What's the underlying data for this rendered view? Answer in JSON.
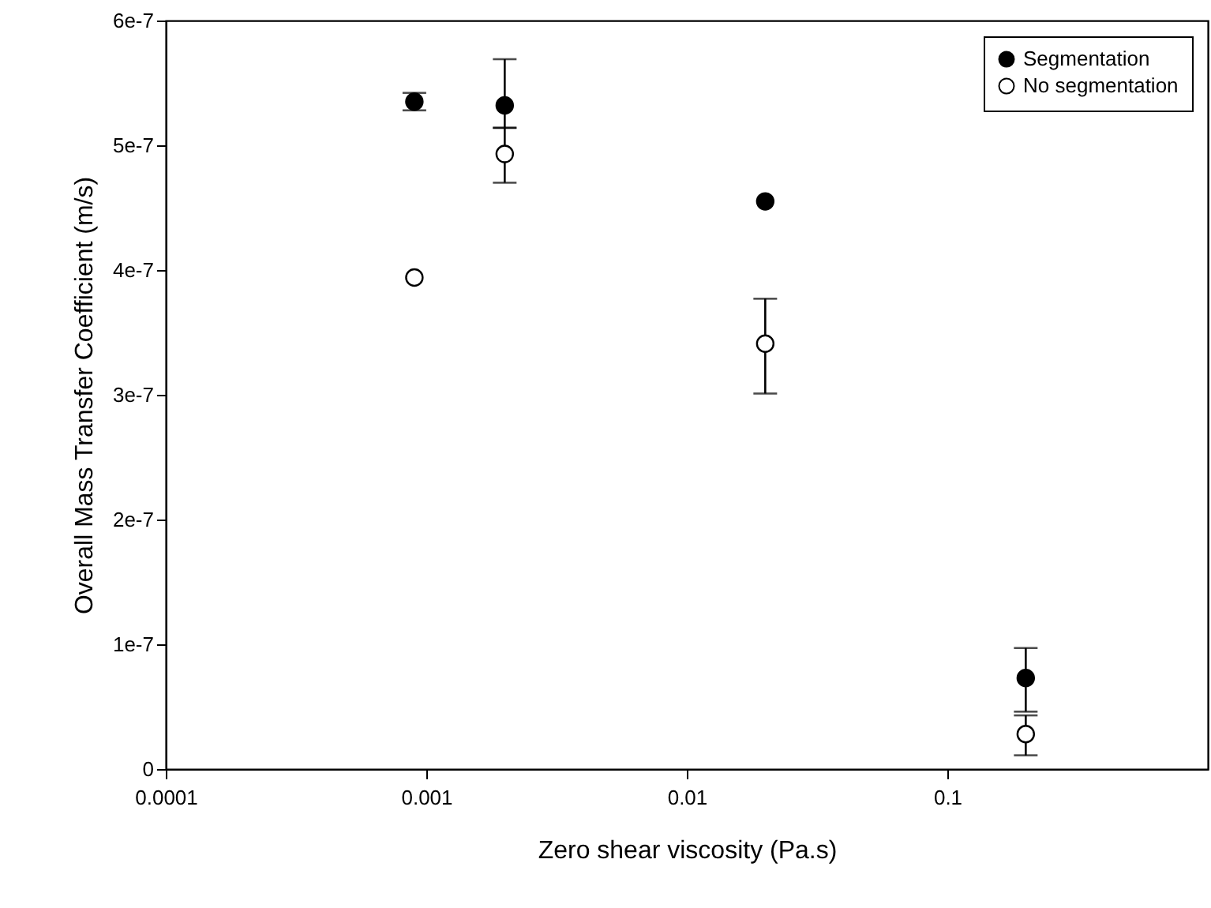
{
  "chart_data": {
    "type": "scatter",
    "xlabel": "Zero shear viscosity (Pa.s)",
    "ylabel": "Overall Mass Transfer Coefficient (m/s)",
    "log": "x",
    "xlim": [
      0.0001,
      1
    ],
    "xticks": [
      0.0001,
      0.001,
      0.01,
      0.1
    ],
    "ylim": [
      0,
      6e-07
    ],
    "yticks": [
      {
        "value": 0,
        "label": "0"
      },
      {
        "value": 1e-07,
        "label": "1e-7"
      },
      {
        "value": 2e-07,
        "label": "2e-7"
      },
      {
        "value": 3e-07,
        "label": "3e-7"
      },
      {
        "value": 4e-07,
        "label": "4e-7"
      },
      {
        "value": 5e-07,
        "label": "5e-7"
      },
      {
        "value": 6e-07,
        "label": "6e-7"
      }
    ],
    "grid": false,
    "legend": "top right",
    "marker": "circle",
    "series": [
      {
        "name": "Segmentation",
        "color": "#000000",
        "x": [
          0.0009,
          0.002,
          0.02,
          0.2
        ],
        "values": [
          5.35e-07,
          5.32e-07,
          4.55e-07,
          7.3e-08
        ],
        "errors": [
          [
            5.28e-07,
            5.42e-07
          ],
          [
            5.14e-07,
            5.69e-07
          ],
          null,
          [
            4.6e-08,
            9.7e-08
          ]
        ]
      },
      {
        "name": "No segmentation",
        "color": "#ffffff",
        "x": [
          0.0009,
          0.002,
          0.02,
          0.2
        ],
        "values": [
          3.94e-07,
          4.93e-07,
          3.41e-07,
          2.8e-08
        ],
        "errors": [
          null,
          [
            4.7e-07,
            5.14e-07
          ],
          [
            3.01e-07,
            3.77e-07
          ],
          [
            1.1e-08,
            4.3e-08
          ]
        ]
      }
    ]
  }
}
